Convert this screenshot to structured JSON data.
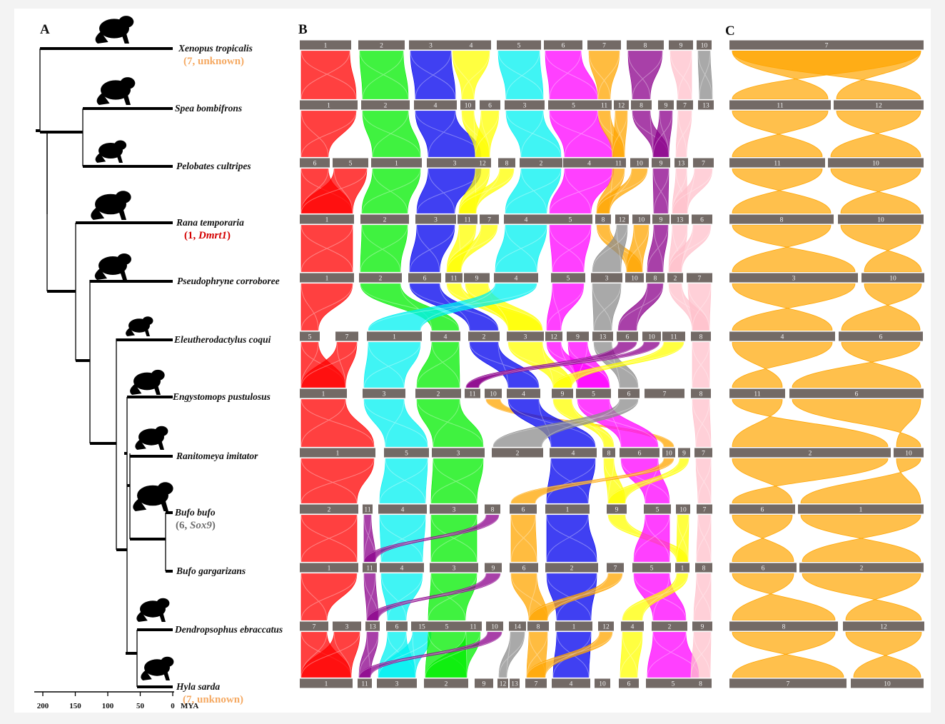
{
  "panels": {
    "a": "A",
    "b": "B",
    "c": "C"
  },
  "colors": {
    "chromosome": "#736a66",
    "highlight_orange": "#f5a962",
    "highlight_red": "#d40000",
    "highlight_gray": "#6e6e6e",
    "link_palette": {
      "1": "#ff0000",
      "2": "#00ee00",
      "3": "#0000ee",
      "4": "#ffff00",
      "5": "#00f0f0",
      "6": "#ff00ff",
      "7": "#ffa500",
      "8": "#8b008b",
      "9": "#ffc0cb",
      "10": "#8c8c8c"
    }
  },
  "icons": [
    "frog-silhouette-icon",
    "toad-silhouette-icon"
  ],
  "tree": {
    "axis_ticks": [
      "200",
      "150",
      "100",
      "50",
      "0"
    ],
    "axis_unit": "MYA",
    "axis_range": [
      200,
      0
    ],
    "species": [
      {
        "name": "Xenopus tropicalis",
        "note": "(7, unknown)",
        "note_style": "orange"
      },
      {
        "name": "Spea bombifrons"
      },
      {
        "name": "Pelobates cultripes"
      },
      {
        "name": "Rana temporaria",
        "note_prefix": "(1, ",
        "note_gene": "Dmrt1",
        "note_suffix": ")",
        "note_style": "red"
      },
      {
        "name": "Pseudophryne corroboree"
      },
      {
        "name": "Eleutherodactylus coqui"
      },
      {
        "name": "Engystomops pustulosus"
      },
      {
        "name": "Ranitomeya imitator"
      },
      {
        "name": "Bufo bufo",
        "note_prefix": "(6, ",
        "note_gene": "Sox9",
        "note_suffix": ")",
        "note_style": "gray"
      },
      {
        "name": "Bufo gargarizans"
      },
      {
        "name": "Dendropsophus ebraccatus"
      },
      {
        "name": "Hyla sarda",
        "note": "(7, unknown)",
        "note_style": "orange"
      }
    ]
  },
  "synteny_rows": [
    [
      [
        "1",
        1
      ],
      [
        "2",
        2
      ],
      [
        "3",
        3
      ],
      [
        "4",
        4
      ],
      [
        "5",
        5
      ],
      [
        "6",
        6
      ],
      [
        "7",
        7
      ],
      [
        "8",
        8
      ],
      [
        "9",
        9
      ],
      [
        "10",
        10
      ]
    ],
    [
      [
        "1",
        1
      ],
      [
        "2",
        2
      ],
      [
        "4",
        3
      ],
      [
        "10",
        4
      ],
      [
        "6",
        4
      ],
      [
        "3",
        5
      ],
      [
        "5",
        6
      ],
      [
        "11",
        7
      ],
      [
        "12",
        7
      ],
      [
        "8",
        8
      ],
      [
        "9",
        8
      ],
      [
        "7",
        9
      ],
      [
        "13",
        10
      ]
    ],
    [
      [
        "6",
        1
      ],
      [
        "5",
        1
      ],
      [
        "1",
        2
      ],
      [
        "3",
        3
      ],
      [
        "12",
        4
      ],
      [
        "8",
        4
      ],
      [
        "2",
        5
      ],
      [
        "4",
        6
      ],
      [
        "11",
        7
      ],
      [
        "10",
        7
      ],
      [
        "9",
        8
      ],
      [
        "13",
        9
      ],
      [
        "7",
        9
      ]
    ],
    [
      [
        "1",
        1
      ],
      [
        "2",
        2
      ],
      [
        "3",
        3
      ],
      [
        "11",
        4
      ],
      [
        "7",
        4
      ],
      [
        "4",
        5
      ],
      [
        "5",
        6
      ],
      [
        "8",
        7
      ],
      [
        "12",
        10
      ],
      [
        "10",
        7
      ],
      [
        "9",
        8
      ],
      [
        "13",
        9
      ],
      [
        "6",
        9
      ]
    ],
    [
      [
        "1",
        1
      ],
      [
        "2",
        2
      ],
      [
        "6",
        3
      ],
      [
        "11",
        4
      ],
      [
        "9",
        4
      ],
      [
        "4",
        5
      ],
      [
        "5",
        6
      ],
      [
        "3",
        10
      ],
      [
        "10",
        7
      ],
      [
        "8",
        8
      ],
      [
        "2",
        9
      ],
      [
        "7",
        9
      ]
    ],
    [
      [
        "5",
        1
      ],
      [
        "7",
        1
      ],
      [
        "1",
        5
      ],
      [
        "4",
        2
      ],
      [
        "2",
        3
      ],
      [
        "3",
        4
      ],
      [
        "12",
        6
      ],
      [
        "9",
        6
      ],
      [
        "13",
        10
      ],
      [
        "6",
        8
      ],
      [
        "10",
        8
      ],
      [
        "11",
        4
      ],
      [
        "8",
        9
      ]
    ],
    [
      [
        "1",
        1
      ],
      [
        "3",
        5
      ],
      [
        "2",
        2
      ],
      [
        "11",
        8
      ],
      [
        "10",
        7
      ],
      [
        "4",
        3
      ],
      [
        "9",
        4
      ],
      [
        "5",
        6
      ],
      [
        "6",
        10
      ],
      [
        "7",
        8
      ],
      [
        "8",
        9
      ]
    ],
    [
      [
        "1",
        1
      ],
      [
        "5",
        5
      ],
      [
        "3",
        2
      ],
      [
        "2",
        10
      ],
      [
        "4",
        3
      ],
      [
        "8",
        4
      ],
      [
        "6",
        6
      ],
      [
        "10",
        7
      ],
      [
        "9",
        4
      ],
      [
        "7",
        9
      ]
    ],
    [
      [
        "2",
        1
      ],
      [
        "11",
        8
      ],
      [
        "4",
        5
      ],
      [
        "3",
        2
      ],
      [
        "8",
        8
      ],
      [
        "6",
        7
      ],
      [
        "1",
        3
      ],
      [
        "9",
        4
      ],
      [
        "5",
        6
      ],
      [
        "10",
        4
      ],
      [
        "7",
        9
      ]
    ],
    [
      [
        "1",
        1
      ],
      [
        "11",
        8
      ],
      [
        "4",
        5
      ],
      [
        "3",
        2
      ],
      [
        "9",
        8
      ],
      [
        "6",
        7
      ],
      [
        "2",
        3
      ],
      [
        "7",
        7
      ],
      [
        "5",
        6
      ],
      [
        "1",
        4
      ],
      [
        "8",
        9
      ]
    ],
    [
      [
        "7",
        1
      ],
      [
        "3",
        1
      ],
      [
        "13",
        8
      ],
      [
        "6",
        5
      ],
      [
        "15",
        5
      ],
      [
        "5",
        2
      ],
      [
        "11",
        2
      ],
      [
        "10",
        8
      ],
      [
        "14",
        10
      ],
      [
        "8",
        7
      ],
      [
        "1",
        3
      ],
      [
        "12",
        7
      ],
      [
        "4",
        4
      ],
      [
        "2",
        6
      ],
      [
        "9",
        9
      ]
    ],
    [
      [
        "1",
        1
      ],
      [
        "11",
        8
      ],
      [
        "3",
        5
      ],
      [
        "2",
        2
      ],
      [
        "9",
        8
      ],
      [
        "12",
        10
      ],
      [
        "13",
        10
      ],
      [
        "7",
        7
      ],
      [
        "4",
        3
      ],
      [
        "10",
        7
      ],
      [
        "6",
        4
      ],
      [
        "5",
        6
      ],
      [
        "8",
        9
      ]
    ]
  ],
  "chr7_rows": [
    [
      "7"
    ],
    [
      "11",
      "12"
    ],
    [
      "11",
      "10"
    ],
    [
      "8",
      "10"
    ],
    [
      "3",
      "10"
    ],
    [
      "4",
      "6"
    ],
    [
      "11",
      "6"
    ],
    [
      "2",
      "10"
    ],
    [
      "6",
      "1"
    ],
    [
      "6",
      "2"
    ],
    [
      "8",
      "12"
    ],
    [
      "7",
      "10"
    ]
  ]
}
